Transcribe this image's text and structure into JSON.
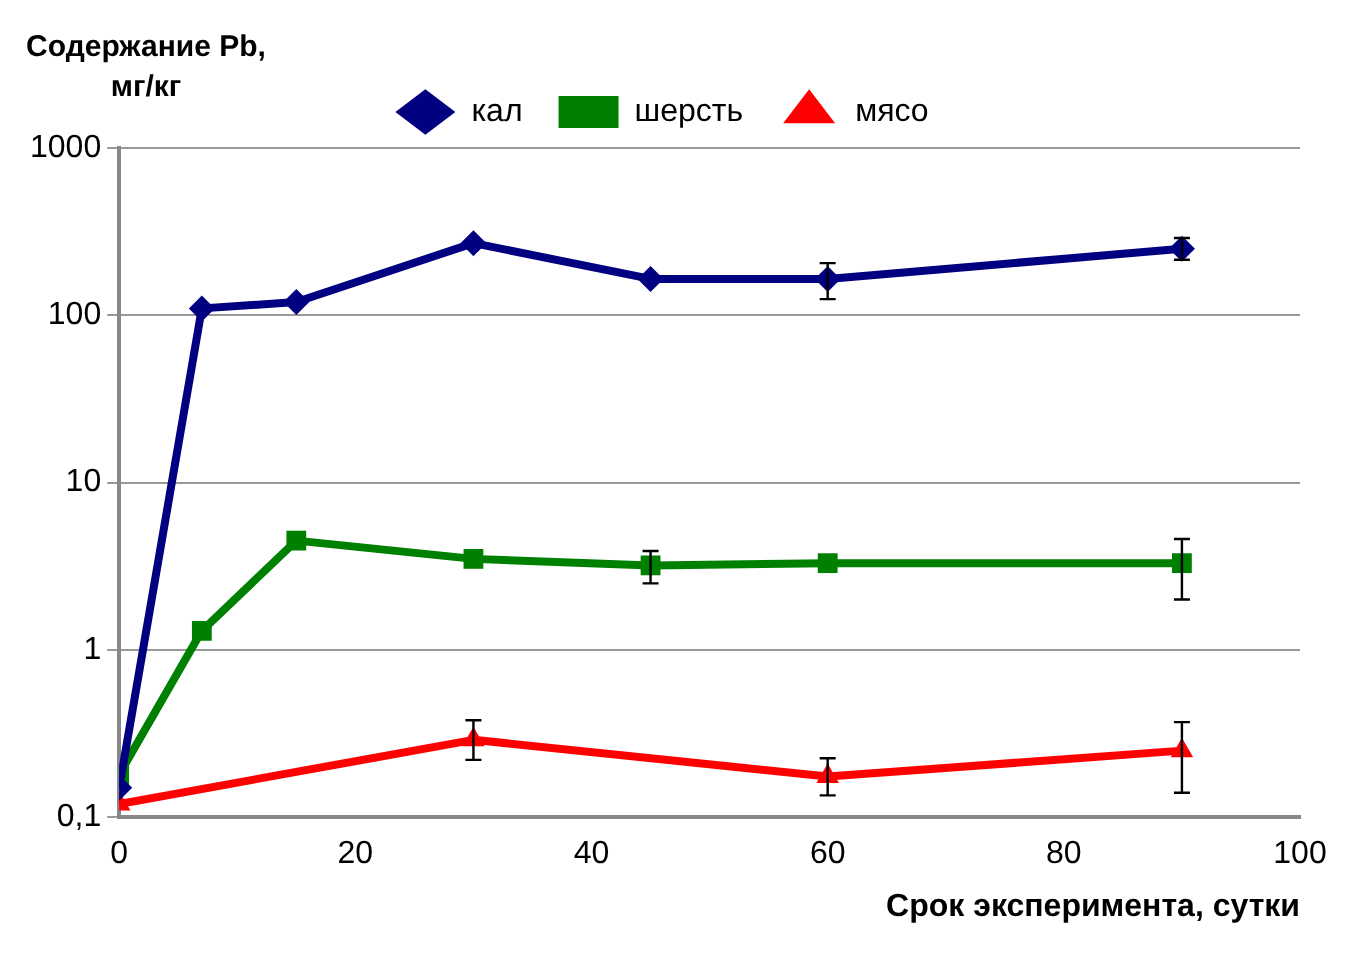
{
  "chart_data": {
    "type": "line",
    "ylabel": "Содержание Pb, мг/кг",
    "xlabel": "Срок эксперимента, сутки",
    "log": "y",
    "grid": "y",
    "legend": "top",
    "line_style": "solid",
    "xlim": [
      0,
      100
    ],
    "xticks": [
      0,
      20,
      40,
      60,
      80,
      100
    ],
    "ylim": [
      0.1,
      1000
    ],
    "yticks": [
      {
        "value": 0.1,
        "label": "0,1"
      },
      1,
      10,
      100,
      1000
    ],
    "series": [
      {
        "name": "кал",
        "color": "#000080",
        "marker": "diamond",
        "x": [
          0,
          7,
          15,
          30,
          45,
          60,
          90
        ],
        "values": [
          0.15,
          110,
          120,
          270,
          165,
          165,
          250
        ],
        "errors": [
          null,
          null,
          null,
          null,
          null,
          [
            125,
            205
          ],
          [
            215,
            290
          ]
        ]
      },
      {
        "name": "шерсть",
        "color": "#008000",
        "marker": "square",
        "x": [
          0,
          7,
          15,
          30,
          45,
          60,
          90
        ],
        "values": [
          0.18,
          1.3,
          4.5,
          3.5,
          3.2,
          3.3,
          3.3
        ],
        "errors": [
          null,
          null,
          null,
          null,
          [
            2.5,
            3.9
          ],
          null,
          [
            2.0,
            4.6
          ]
        ]
      },
      {
        "name": "мясо",
        "color": "#ff0000",
        "marker": "triangle",
        "x": [
          0,
          30,
          60,
          90
        ],
        "values": [
          0.12,
          0.29,
          0.175,
          0.25
        ],
        "errors": [
          null,
          [
            0.22,
            0.38
          ],
          [
            0.135,
            0.225
          ],
          [
            0.14,
            0.37
          ]
        ]
      }
    ]
  }
}
